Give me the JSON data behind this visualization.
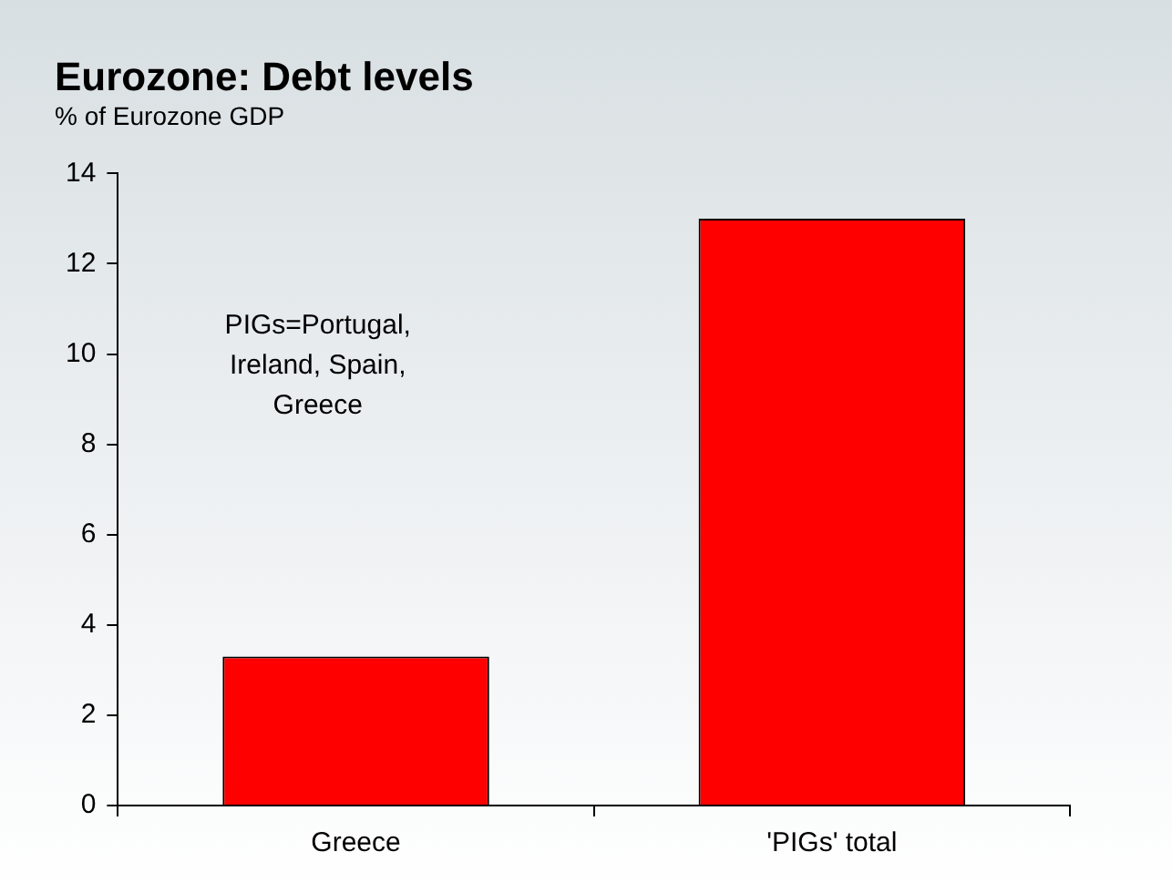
{
  "chart_data": {
    "type": "bar",
    "title": "Eurozone: Debt levels",
    "subtitle": "% of Eurozone GDP",
    "categories": [
      "Greece",
      "'PIGs' total"
    ],
    "values": [
      3.3,
      13
    ],
    "color": "#ff0000",
    "ylim": [
      0,
      14
    ],
    "yticks": [
      0,
      2,
      4,
      6,
      8,
      10,
      12,
      14
    ],
    "grid": false,
    "legend": false,
    "annotations": [
      "PIGs=Portugal, Ireland, Spain, Greece"
    ]
  }
}
